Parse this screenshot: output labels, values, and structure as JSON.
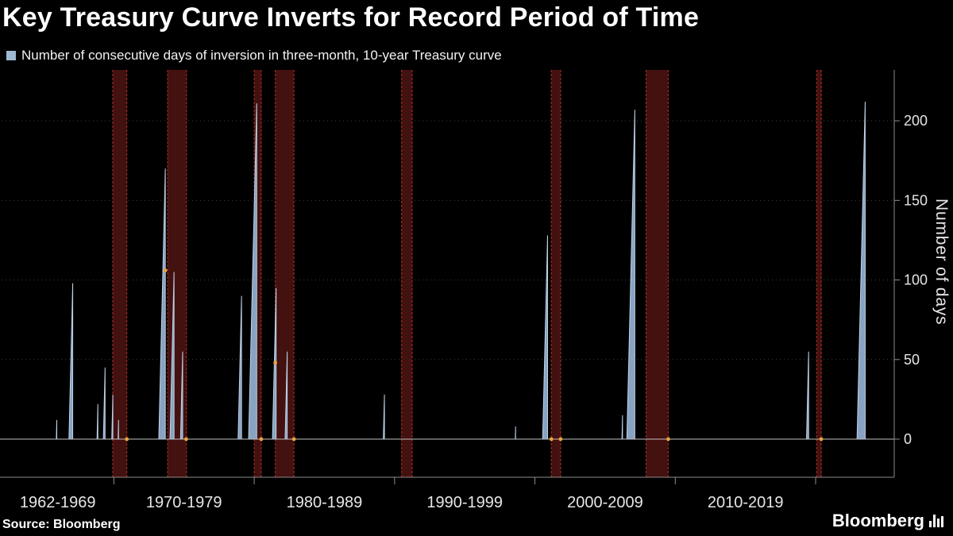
{
  "footer": {
    "source": "Source: Bloomberg",
    "brand": "Bloomberg"
  },
  "colors": {
    "background": "#000000",
    "title_text": "#ffffff",
    "axis_text": "#e6e6e6",
    "axis_line": "#8c8c8c",
    "grid": "#3f3f3f",
    "zero_line": "#c0c0c0",
    "series_fill": "#88a3c2",
    "series_edge": "#bdd2e6",
    "legend_swatch": "#9db8d2",
    "recession_fill": "#431110",
    "recession_edge": "#99291f",
    "marker": "#e8a33b"
  },
  "chart_data": {
    "type": "area",
    "title": "Key Treasury Curve Inverts for Record Period of Time",
    "legend_label": "Number of consecutive days of inversion in three-month, 10-year Treasury curve",
    "ylabel": "Number of days",
    "yticks": [
      0,
      50,
      100,
      150,
      200
    ],
    "ylim": [
      -24,
      232
    ],
    "xlim": [
      1962,
      2025.6
    ],
    "grid": "dotted-horizontal",
    "legend_position": "top-left",
    "x_section_boundaries": [
      1970,
      1980,
      1990,
      2000,
      2010,
      2020
    ],
    "x_section_labels": [
      "1962-1969",
      "1970-1979",
      "1980-1989",
      "1990-1999",
      "2000-2009",
      "2010-2019"
    ],
    "inversion_spikes": [
      {
        "start_year": 1965.9,
        "days": 12
      },
      {
        "start_year": 1966.8,
        "days": 98
      },
      {
        "start_year": 1968.8,
        "days": 22
      },
      {
        "start_year": 1969.25,
        "days": 45
      },
      {
        "start_year": 1969.85,
        "days": 28
      },
      {
        "start_year": 1970.3,
        "days": 12
      },
      {
        "start_year": 1973.2,
        "days": 170
      },
      {
        "start_year": 1974.0,
        "days": 105
      },
      {
        "start_year": 1974.75,
        "days": 55
      },
      {
        "start_year": 1978.85,
        "days": 90
      },
      {
        "start_year": 1979.6,
        "days": 211
      },
      {
        "start_year": 1981.3,
        "days": 95
      },
      {
        "start_year": 1982.2,
        "days": 55
      },
      {
        "start_year": 1989.2,
        "days": 28
      },
      {
        "start_year": 1998.6,
        "days": 8
      },
      {
        "start_year": 2000.55,
        "days": 128
      },
      {
        "start_year": 2006.2,
        "days": 15
      },
      {
        "start_year": 2006.55,
        "days": 207
      },
      {
        "start_year": 2019.35,
        "days": 55
      },
      {
        "start_year": 2022.95,
        "days": 212
      }
    ],
    "recession_bands": [
      {
        "start": 1969.92,
        "end": 1970.92
      },
      {
        "start": 1973.83,
        "end": 1975.17
      },
      {
        "start": 1980.0,
        "end": 1980.5
      },
      {
        "start": 1981.5,
        "end": 1982.83
      },
      {
        "start": 1990.5,
        "end": 1991.25
      },
      {
        "start": 2001.17,
        "end": 2001.83
      },
      {
        "start": 2007.92,
        "end": 2009.5
      },
      {
        "start": 2020.08,
        "end": 2020.4
      }
    ],
    "markers": [
      {
        "year": 1970.92,
        "days": 0
      },
      {
        "year": 1973.67,
        "days": 106
      },
      {
        "year": 1975.15,
        "days": 0
      },
      {
        "year": 1980.5,
        "days": 0
      },
      {
        "year": 1981.5,
        "days": 48
      },
      {
        "year": 1982.83,
        "days": 0
      },
      {
        "year": 2001.17,
        "days": 0
      },
      {
        "year": 2001.83,
        "days": 0
      },
      {
        "year": 2009.5,
        "days": 0
      },
      {
        "year": 2020.4,
        "days": 0
      }
    ]
  }
}
